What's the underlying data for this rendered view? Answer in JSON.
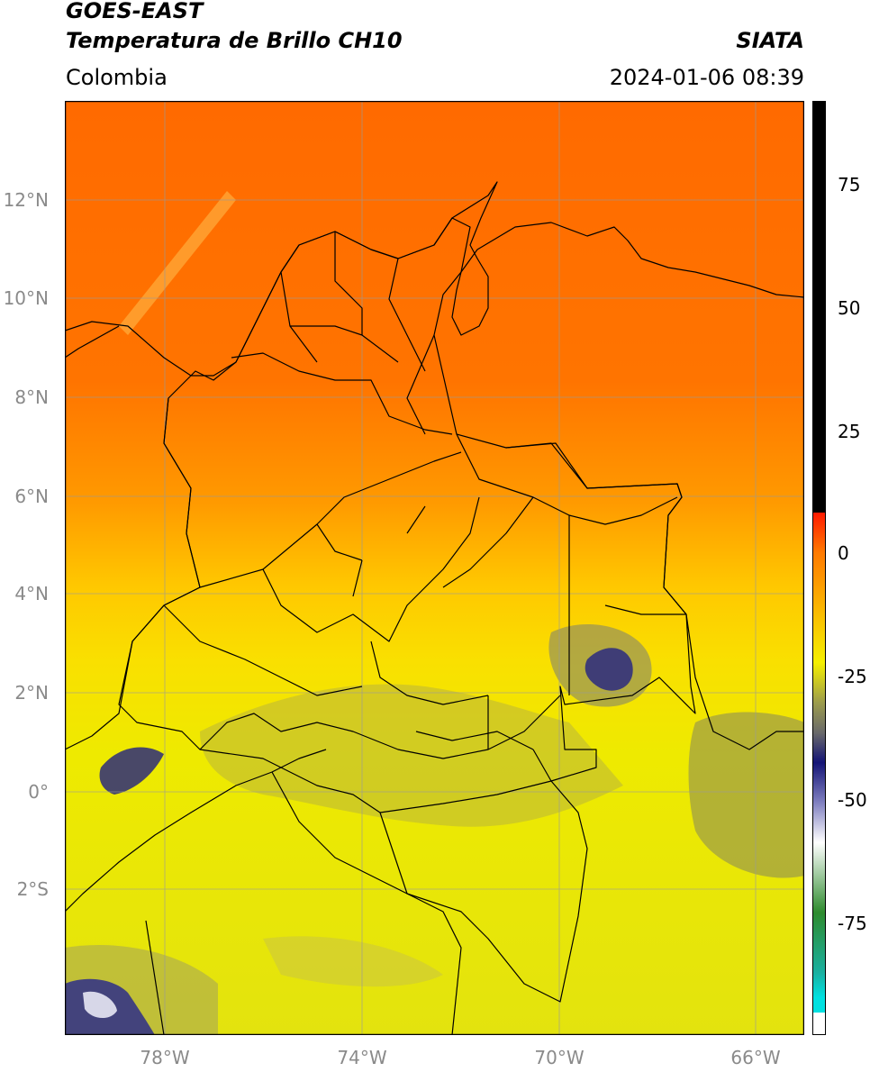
{
  "header": {
    "title_line1": "GOES-EAST",
    "title_line2": "Temperatura de Brillo CH10",
    "region": "Colombia",
    "org": "SIATA",
    "datetime": "2024-01-06 08:39"
  },
  "map": {
    "lat_ticks": [
      "12°N",
      "10°N",
      "8°N",
      "6°N",
      "4°N",
      "2°N",
      "0°",
      "2°S"
    ],
    "lon_ticks": [
      "78°W",
      "74°W",
      "70°W",
      "66°W"
    ],
    "extent": {
      "lon_min": -80.0,
      "lon_max": -65.0,
      "lat_min": -4.7,
      "lat_max": 14.0
    }
  },
  "colorbar": {
    "ticks": [
      "75",
      "50",
      "25",
      "0",
      "-25",
      "-50",
      "-75"
    ],
    "range": [
      -95,
      90
    ],
    "colors": {
      "black": "#000000",
      "red": "#ff1a00",
      "orange": "#ff7a00",
      "yellow": "#f5f000",
      "olive": "#9c9c4c",
      "navy": "#141476",
      "white": "#ffffff",
      "green": "#2e8b2e",
      "cyan": "#00e0e0"
    }
  }
}
